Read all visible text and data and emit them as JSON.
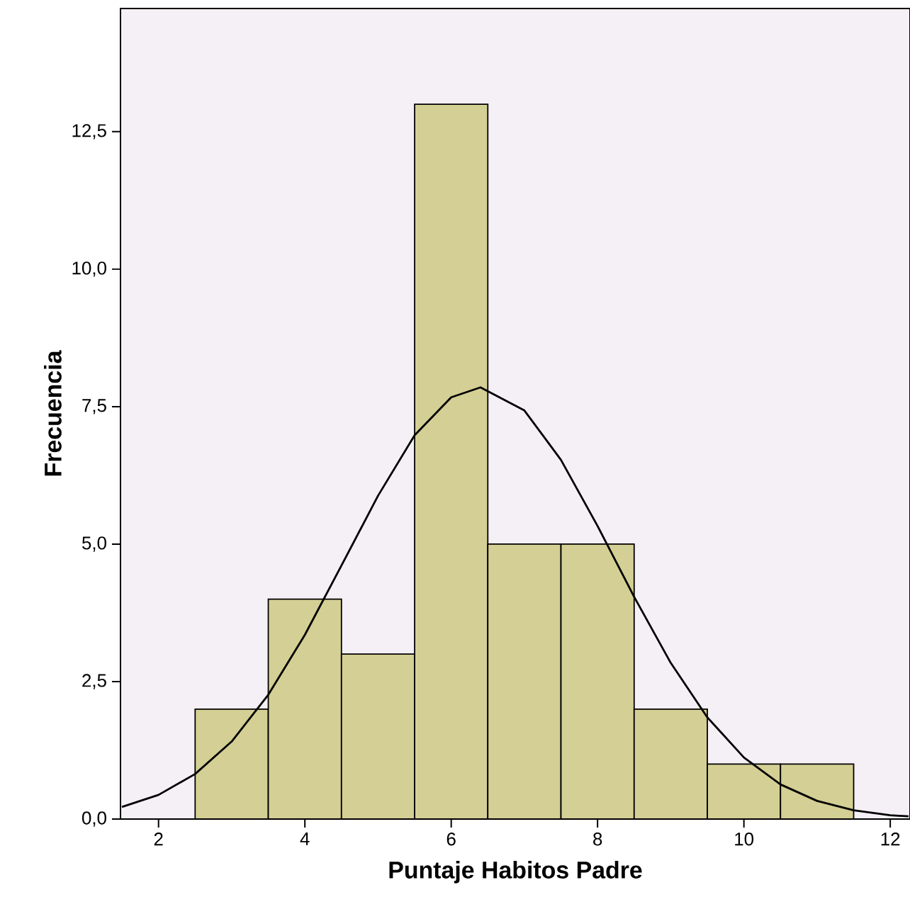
{
  "chart_data": {
    "type": "histogram",
    "xlabel": "Puntaje Habitos Padre",
    "ylabel": "Frecuencia",
    "xlim": [
      1.48,
      12.27
    ],
    "ylim": [
      0,
      14.74
    ],
    "xticks": [
      2,
      4,
      6,
      8,
      10,
      12
    ],
    "yticks": [
      {
        "value": 0,
        "label": "0,0"
      },
      {
        "value": 2.5,
        "label": "2,5"
      },
      {
        "value": 5,
        "label": "5,0"
      },
      {
        "value": 7.5,
        "label": "7,5"
      },
      {
        "value": 10,
        "label": "10,0"
      },
      {
        "value": 12.5,
        "label": "12,5"
      }
    ],
    "grid": false,
    "series": [
      {
        "color": "#d4cf94",
        "bins": [
          2.5,
          3.5,
          4.5,
          5.5,
          6.5,
          7.5,
          8.5,
          9.5,
          10.5,
          11.5
        ],
        "values": [
          2,
          4,
          3,
          13,
          5,
          5,
          2,
          1,
          1
        ]
      },
      {
        "type": "line",
        "color": "#000000",
        "x": [
          1.5,
          2,
          2.5,
          3,
          3.5,
          4,
          4.5,
          5,
          5.5,
          6,
          6.4,
          7,
          7.5,
          8,
          8.5,
          9,
          9.5,
          10,
          10.5,
          11,
          11.5,
          12,
          12.25
        ],
        "values": [
          0.22,
          0.44,
          0.82,
          1.41,
          2.26,
          3.35,
          4.61,
          5.88,
          6.98,
          7.67,
          7.85,
          7.43,
          6.53,
          5.33,
          4.04,
          2.84,
          1.85,
          1.12,
          0.63,
          0.33,
          0.16,
          0.07,
          0.05
        ]
      }
    ]
  }
}
